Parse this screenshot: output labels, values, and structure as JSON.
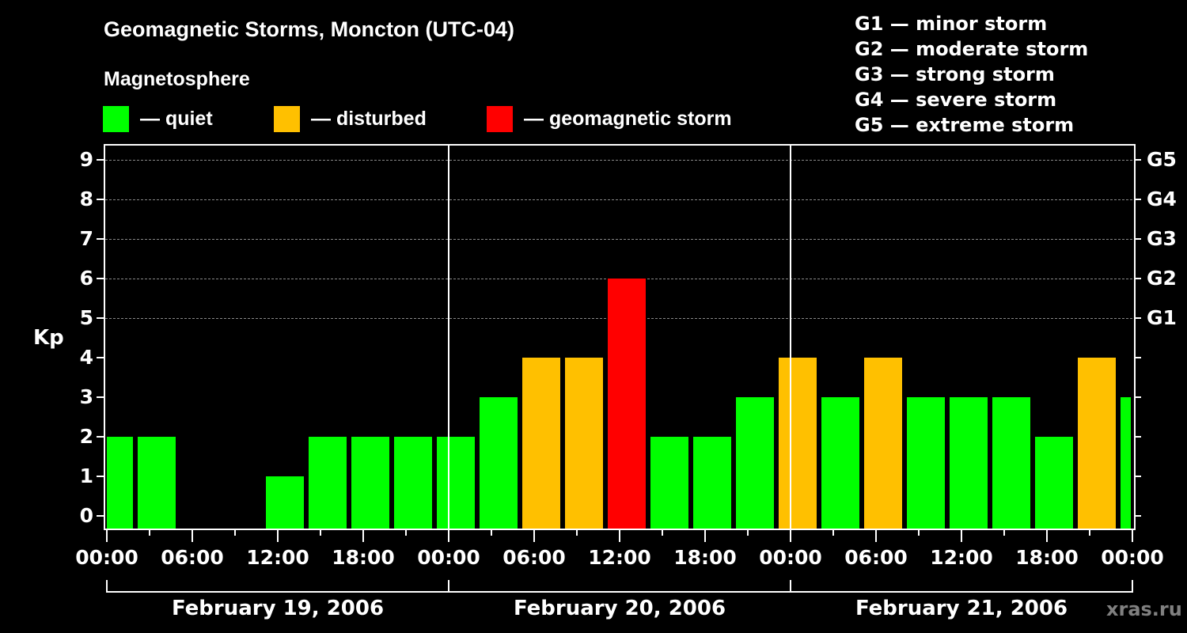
{
  "header": {
    "title": "Geomagnetic Storms, Moncton (UTC-04)",
    "subtitle": "Magnetosphere"
  },
  "legend": [
    {
      "label": "— quiet",
      "color": "#00ff00"
    },
    {
      "label": "— disturbed",
      "color": "#ffc000"
    },
    {
      "label": "— geomagnetic storm",
      "color": "#ff0000"
    }
  ],
  "storm_levels": [
    "G1 — minor storm",
    "G2 — moderate storm",
    "G3 — strong storm",
    "G4 — severe storm",
    "G5 — extreme storm"
  ],
  "axes": {
    "y_label": "Kp",
    "y_ticks": [
      "0",
      "1",
      "2",
      "3",
      "4",
      "5",
      "6",
      "7",
      "8",
      "9"
    ],
    "g_ticks": [
      {
        "kp": 5,
        "label": "G1"
      },
      {
        "kp": 6,
        "label": "G2"
      },
      {
        "kp": 7,
        "label": "G3"
      },
      {
        "kp": 8,
        "label": "G4"
      },
      {
        "kp": 9,
        "label": "G5"
      }
    ],
    "x_ticks": [
      "00:00",
      "06:00",
      "12:00",
      "18:00",
      "00:00",
      "06:00",
      "12:00",
      "18:00",
      "00:00",
      "06:00",
      "12:00",
      "18:00",
      "00:00"
    ],
    "dates": [
      "February 19, 2006",
      "February 20, 2006",
      "February 21, 2006"
    ]
  },
  "credit": "xras.ru",
  "chart_data": {
    "type": "bar",
    "title": "Geomagnetic Storms, Moncton (UTC-04)",
    "subtitle": "Magnetosphere",
    "xlabel": "",
    "ylabel": "Kp",
    "ylim": [
      0,
      9
    ],
    "y2_labels": {
      "5": "G1",
      "6": "G2",
      "7": "G3",
      "8": "G4",
      "9": "G5"
    },
    "grid": "horizontal dashed at Kp 5–9",
    "interval_hours": 3,
    "categories": [
      "Feb 19 ~00:00",
      "Feb 19 ~03:00",
      "Feb 19 ~06:00",
      "Feb 19 ~09:00",
      "Feb 19 ~12:00",
      "Feb 19 ~15:00",
      "Feb 19 ~18:00",
      "Feb 19 ~21:00",
      "Feb 20 ~00:00",
      "Feb 20 ~03:00",
      "Feb 20 ~06:00",
      "Feb 20 ~09:00",
      "Feb 20 ~12:00",
      "Feb 20 ~15:00",
      "Feb 20 ~18:00",
      "Feb 20 ~21:00",
      "Feb 21 ~00:00",
      "Feb 21 ~03:00",
      "Feb 21 ~06:00",
      "Feb 21 ~09:00",
      "Feb 21 ~12:00",
      "Feb 21 ~15:00",
      "Feb 21 ~18:00",
      "Feb 21 ~21:00",
      "Feb 22 ~00:00"
    ],
    "values": [
      2,
      2,
      0,
      0,
      1,
      2,
      2,
      2,
      2,
      3,
      4,
      4,
      6,
      2,
      2,
      3,
      4,
      3,
      4,
      3,
      3,
      3,
      2,
      4,
      3
    ],
    "status": [
      "quiet",
      "quiet",
      "quiet",
      "quiet",
      "quiet",
      "quiet",
      "quiet",
      "quiet",
      "quiet",
      "quiet",
      "disturbed",
      "disturbed",
      "storm",
      "quiet",
      "quiet",
      "quiet",
      "disturbed",
      "quiet",
      "disturbed",
      "quiet",
      "quiet",
      "quiet",
      "quiet",
      "disturbed",
      "quiet"
    ],
    "colors": {
      "quiet": "#00ff00",
      "disturbed": "#ffc000",
      "storm": "#ff0000"
    },
    "legend": [
      "quiet",
      "disturbed",
      "geomagnetic storm"
    ],
    "x_tick_labels": [
      "00:00",
      "06:00",
      "12:00",
      "18:00",
      "00:00",
      "06:00",
      "12:00",
      "18:00",
      "00:00",
      "06:00",
      "12:00",
      "18:00",
      "00:00"
    ],
    "date_labels": [
      "February 19, 2006",
      "February 20, 2006",
      "February 21, 2006"
    ]
  }
}
